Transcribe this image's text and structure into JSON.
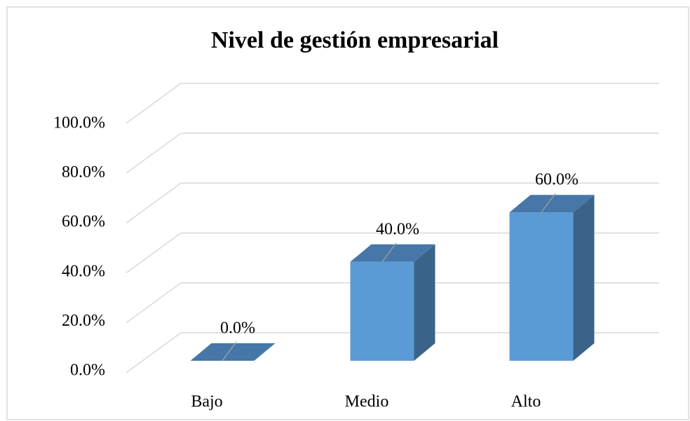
{
  "chart_data": {
    "type": "bar3d",
    "title": "Nivel de gestión empresarial",
    "categories": [
      "Bajo",
      "Medio",
      "Alto"
    ],
    "values": [
      0,
      40,
      60
    ],
    "value_labels": [
      "0.0%",
      "40.0%",
      "60.0%"
    ],
    "color": "#5b9bd5",
    "ylim": [
      0,
      100
    ],
    "yticks": [
      {
        "value": 0,
        "label": "0.0%"
      },
      {
        "value": 20,
        "label": "20.0%"
      },
      {
        "value": 40,
        "label": "40.0%"
      },
      {
        "value": 60,
        "label": "60.0%"
      },
      {
        "value": 80,
        "label": "80.0%"
      },
      {
        "value": 100,
        "label": "100.0%"
      }
    ],
    "grid": true
  }
}
